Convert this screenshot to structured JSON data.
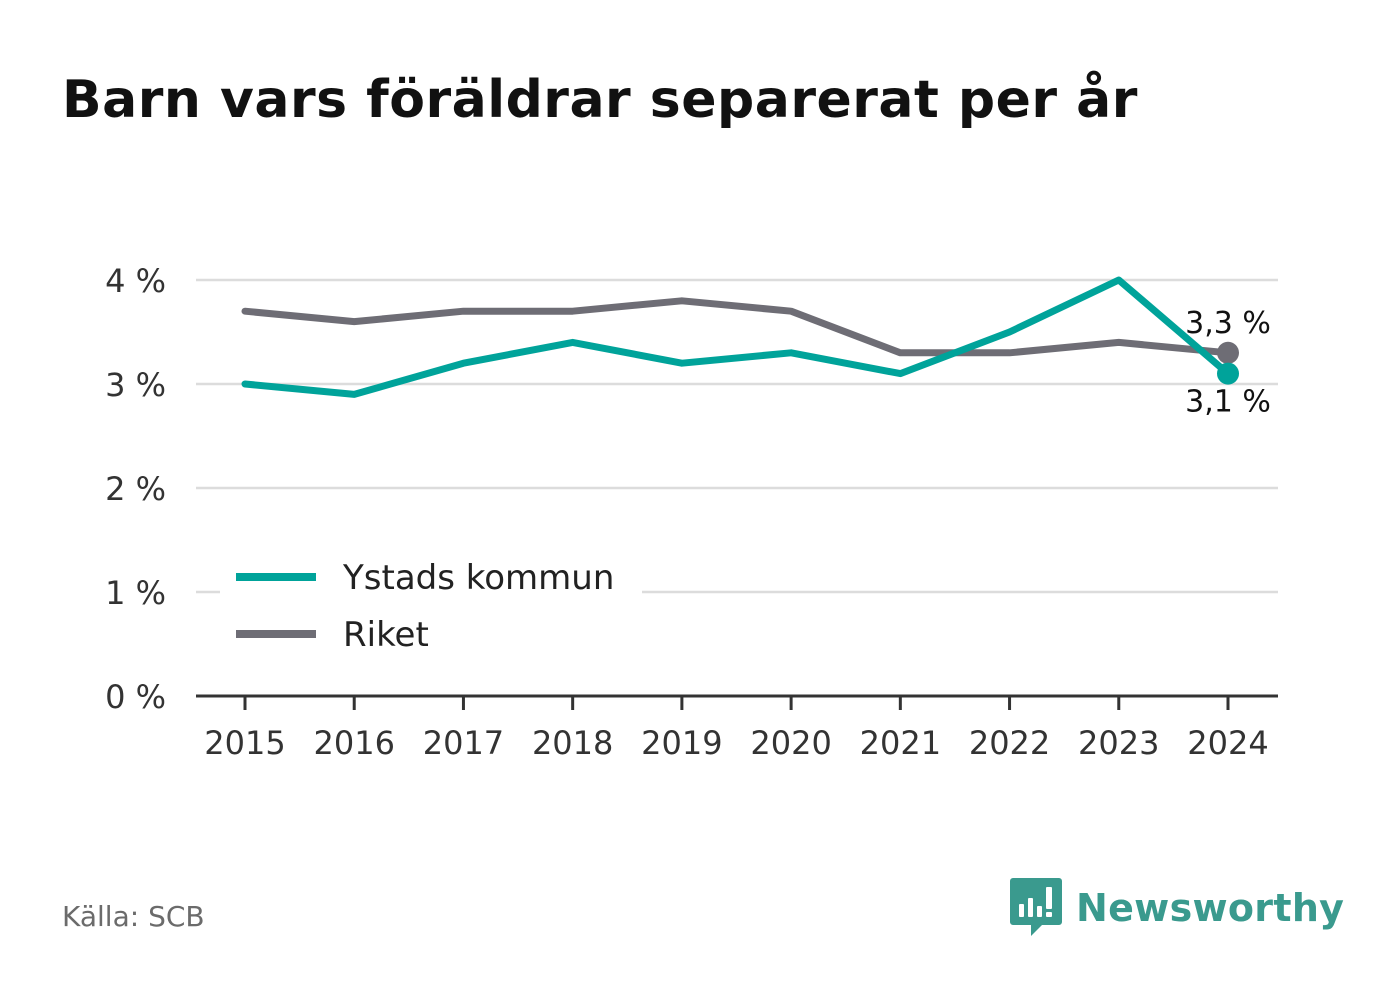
{
  "title": "Barn vars föräldrar separerat per år",
  "source": "Källa: SCB",
  "brand": {
    "name": "Newsworthy",
    "icon": "bar-chart-speech-bubble-icon"
  },
  "chart_data": {
    "type": "line",
    "title": "Barn vars föräldrar separerat per år",
    "xlabel": "",
    "ylabel": "",
    "x": [
      "2015",
      "2016",
      "2017",
      "2018",
      "2019",
      "2020",
      "2021",
      "2022",
      "2023",
      "2024"
    ],
    "series": [
      {
        "name": "Ystads kommun",
        "color": "#00a39a",
        "values": [
          3.0,
          2.9,
          3.2,
          3.4,
          3.2,
          3.3,
          3.1,
          3.5,
          4.0,
          3.1
        ]
      },
      {
        "name": "Riket",
        "color": "#6e6d75",
        "values": [
          3.7,
          3.6,
          3.7,
          3.7,
          3.8,
          3.7,
          3.3,
          3.3,
          3.4,
          3.3
        ]
      }
    ],
    "y_ticks": [
      {
        "value": 0,
        "label": "0 %"
      },
      {
        "value": 1,
        "label": "1 %"
      },
      {
        "value": 2,
        "label": "2 %"
      },
      {
        "value": 3,
        "label": "3 %"
      },
      {
        "value": 4,
        "label": "4 %"
      }
    ],
    "ylim": [
      0,
      4
    ],
    "end_labels": [
      {
        "series": "Riket",
        "text": "3,3 %",
        "position": "above"
      },
      {
        "series": "Ystads kommun",
        "text": "3,1 %",
        "position": "below"
      }
    ],
    "grid": true,
    "legend": "bottom-left"
  }
}
